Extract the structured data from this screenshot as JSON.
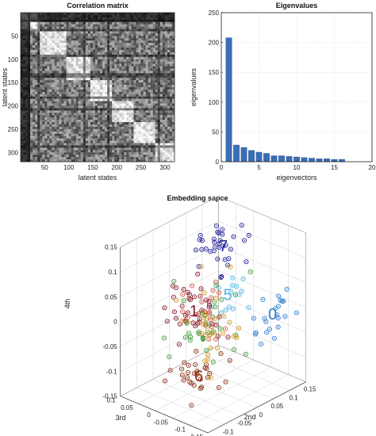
{
  "chart_data": [
    {
      "type": "heatmap",
      "title": "Correlation matrix",
      "xlabel": "latent states",
      "ylabel": "latent states",
      "xticks": [
        50,
        100,
        150,
        200,
        250,
        300
      ],
      "yticks": [
        50,
        100,
        150,
        200,
        250,
        300
      ],
      "size": 320,
      "colormap": "gray",
      "blocks": [
        [
          0,
          40
        ],
        [
          40,
          95
        ],
        [
          95,
          145
        ],
        [
          145,
          190
        ],
        [
          190,
          235
        ],
        [
          235,
          280
        ],
        [
          280,
          320
        ]
      ]
    },
    {
      "type": "bar",
      "title": "Eigenvalues",
      "xlabel": "eigenvectors",
      "ylabel": "eigenvalues",
      "xlim": [
        0,
        20
      ],
      "ylim": [
        0,
        250
      ],
      "xticks": [
        0,
        5,
        10,
        15,
        20
      ],
      "yticks": [
        0,
        50,
        100,
        150,
        200,
        250
      ],
      "x": [
        1,
        2,
        3,
        4,
        5,
        6,
        7,
        8,
        9,
        10,
        11,
        12,
        13,
        14,
        15,
        16
      ],
      "values": [
        208,
        28,
        24,
        19,
        16,
        14,
        10,
        10,
        9,
        8,
        7,
        6,
        5,
        5,
        4,
        4
      ],
      "color": "#3a6db6",
      "grid": true
    },
    {
      "type": "scatter",
      "title": "Embedding sapce",
      "xlabel": "2nd",
      "ylabel": "3rd",
      "zlabel": "4th",
      "xticks": [
        -0.15,
        -0.1,
        -0.05,
        0,
        0.05,
        0.1,
        0.15
      ],
      "yticks": [
        -0.15,
        -0.1,
        -0.05,
        0,
        0.05,
        0.1
      ],
      "zticks": [
        -0.15,
        -0.1,
        -0.05,
        0,
        0.05,
        0.1,
        0.15
      ],
      "xtick_labels": [
        "-0.15",
        "-0.1",
        "-0.05",
        "0",
        "0.05",
        "0.1",
        "0.15"
      ],
      "ytick_labels": [
        "-0.15",
        "-0.1",
        "-0.05",
        "0",
        "0.05",
        "0.1"
      ],
      "ztick_labels": [
        "-0.15",
        "-0.1",
        "-0.05",
        "0",
        "0.05",
        "0.1",
        "0.15"
      ],
      "xlim": [
        -0.15,
        0.15
      ],
      "ylim": [
        -0.15,
        0.1
      ],
      "zlim": [
        -0.15,
        0.15
      ],
      "grid": true,
      "clusters": [
        {
          "label": "0",
          "color": "#2f7fd0",
          "center": [
            0.08,
            -0.12,
            0.0
          ],
          "spread": [
            0.03,
            0.03,
            0.025
          ],
          "n": 22
        },
        {
          "label": "5",
          "color": "#4db6e8",
          "center": [
            0.05,
            -0.02,
            0.02
          ],
          "spread": [
            0.02,
            0.02,
            0.02
          ],
          "n": 14
        },
        {
          "label": "7",
          "color": "#27249a",
          "center": [
            0.09,
            0.03,
            0.09
          ],
          "spread": [
            0.025,
            0.025,
            0.025
          ],
          "n": 34
        },
        {
          "label": "1",
          "color": "#8b1a2a",
          "center": [
            0.0,
            0.03,
            -0.01
          ],
          "spread": [
            0.03,
            0.03,
            0.03
          ],
          "n": 40
        },
        {
          "label": "6",
          "color": "#8a3018",
          "center": [
            -0.06,
            -0.04,
            -0.1
          ],
          "spread": [
            0.025,
            0.025,
            0.025
          ],
          "n": 30
        },
        {
          "label": "",
          "color": "#3f9a3a",
          "center": [
            0.01,
            0.02,
            -0.04
          ],
          "spread": [
            0.04,
            0.035,
            0.035
          ],
          "n": 34
        },
        {
          "label": "",
          "color": "#d29a2a",
          "center": [
            0.02,
            0.02,
            -0.06
          ],
          "spread": [
            0.04,
            0.04,
            0.04
          ],
          "n": 32
        },
        {
          "label": "",
          "color": "#d4544a",
          "center": [
            0.03,
            0.03,
            -0.02
          ],
          "spread": [
            0.035,
            0.035,
            0.03
          ],
          "n": 18
        }
      ]
    }
  ]
}
